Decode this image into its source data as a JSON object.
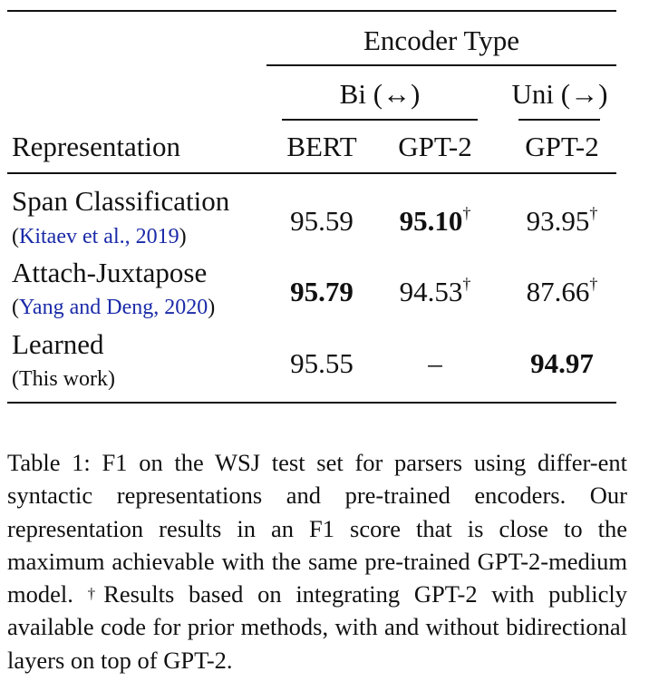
{
  "table": {
    "encoder_type": "Encoder Type",
    "bi_group": "Bi (↔)",
    "uni_group": "Uni (→)",
    "col_representation": "Representation",
    "col_bert": "BERT",
    "col_gpt2_bi": "GPT-2",
    "col_gpt2_uni": "GPT-2",
    "dagger": "†",
    "rows": [
      {
        "name": "Span Classification",
        "cite_open": "(",
        "cite_text": "Kitaev et al., 2019",
        "cite_close": ")",
        "bert": "95.59",
        "gpt2_bi": "95.10",
        "gpt2_uni": "93.95"
      },
      {
        "name": "Attach-Juxtapose",
        "cite_open": "(",
        "cite_text": "Yang and Deng, 2020",
        "cite_close": ")",
        "bert": "95.79",
        "gpt2_bi": "94.53",
        "gpt2_uni": "87.66"
      },
      {
        "name": "Learned",
        "cite_plain": "(This work)",
        "bert": "95.55",
        "gpt2_bi": "–",
        "gpt2_uni": "94.97"
      }
    ]
  },
  "caption": {
    "part1": "Table 1:  F1 on the WSJ test set for parsers using differ-ent syntactic representations and pre-trained encoders. Our representation results in an F1 score that is close to the maximum achievable with the same pre-trained GPT-2-medium model.   ",
    "dagger": "†",
    "part2": "Results based on integrating GPT-2 with publicly available code for prior methods, with and without bidirectional layers on top of GPT-2."
  }
}
